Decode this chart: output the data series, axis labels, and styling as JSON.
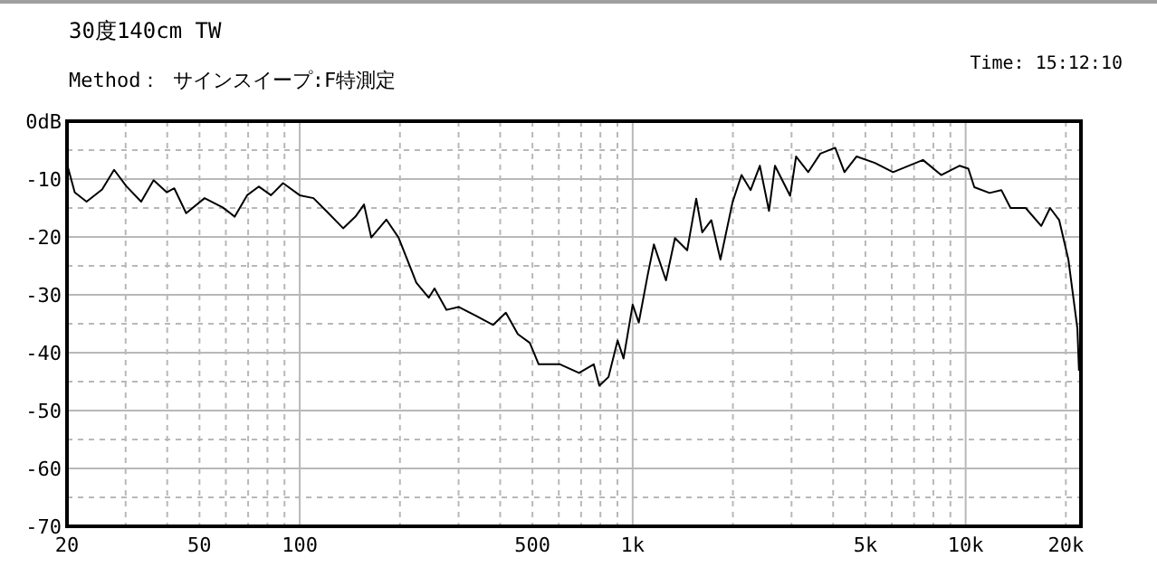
{
  "chart_data": {
    "type": "line",
    "title": "30度140cm TW",
    "subtitle": "Method： サインスイープ:F特測定",
    "annotations": [
      "Time: 15:12:10"
    ],
    "log": "x",
    "grid": true,
    "xlim": [
      20,
      22200
    ],
    "ylim": [
      -70,
      0
    ],
    "xticks": [
      20,
      50,
      100,
      500,
      {
        "value": 1000,
        "label": "1k"
      },
      {
        "value": 5000,
        "label": "5k"
      },
      {
        "value": 10000,
        "label": "10k"
      },
      {
        "value": 20000,
        "label": "20k"
      }
    ],
    "yticks": [
      {
        "value": 0,
        "label": "0dB"
      },
      -10,
      -20,
      -30,
      -40,
      -50,
      -60,
      -70
    ],
    "x": [
      20,
      21.1,
      22.9,
      25.5,
      27.7,
      30.1,
      33.4,
      36.4,
      39.9,
      42,
      45.6,
      51.8,
      58.7,
      63.8,
      69.5,
      75.4,
      82,
      89.1,
      100,
      110,
      122,
      135,
      147,
      156,
      164,
      182,
      198,
      215,
      224,
      244,
      254,
      276,
      300,
      338,
      381,
      416,
      452,
      491,
      522,
      605,
      690,
      764,
      794,
      846,
      901,
      939,
      1000,
      1043,
      1110,
      1158,
      1259,
      1340,
      1458,
      1552,
      1618,
      1723,
      1835,
      1995,
      2123,
      2261,
      2409,
      2567,
      2675,
      2971,
      3096,
      3367,
      3661,
      4058,
      4326,
      4701,
      5336,
      6055,
      7444,
      8444,
      9582,
      10190,
      10620,
      11800,
      12800,
      13640,
      15150,
      16870,
      17930,
      19100,
      20350,
      21660,
      21900
    ],
    "series": [
      {
        "color": "#000000",
        "values": [
          -7.4,
          -12.3,
          -13.9,
          -11.8,
          -8.4,
          -11.2,
          -13.9,
          -10.2,
          -12.3,
          -11.6,
          -15.9,
          -13.3,
          -14.9,
          -16.5,
          -12.8,
          -11.3,
          -12.8,
          -10.7,
          -12.8,
          -13.3,
          -15.9,
          -18.5,
          -16.5,
          -14.4,
          -20.1,
          -17,
          -20.1,
          -25.3,
          -27.9,
          -30.5,
          -28.9,
          -32.6,
          -32.1,
          -33.6,
          -35.2,
          -33.1,
          -36.8,
          -38.3,
          -42,
          -42,
          -43.5,
          -42,
          -45.7,
          -44.2,
          -37.9,
          -41,
          -31.7,
          -34.8,
          -26.5,
          -21.3,
          -27.5,
          -20.2,
          -22.3,
          -13.4,
          -19.2,
          -17.1,
          -23.9,
          -14,
          -9.3,
          -11.9,
          -7.7,
          -15.5,
          -7.7,
          -12.9,
          -6.1,
          -8.8,
          -5.6,
          -4.6,
          -8.8,
          -6.1,
          -7.2,
          -8.8,
          -6.7,
          -9.3,
          -7.7,
          -8.2,
          -11.4,
          -12.4,
          -11.9,
          -15,
          -15,
          -18.1,
          -15,
          -17.1,
          -23.9,
          -35.8,
          -43.1
        ]
      }
    ]
  }
}
